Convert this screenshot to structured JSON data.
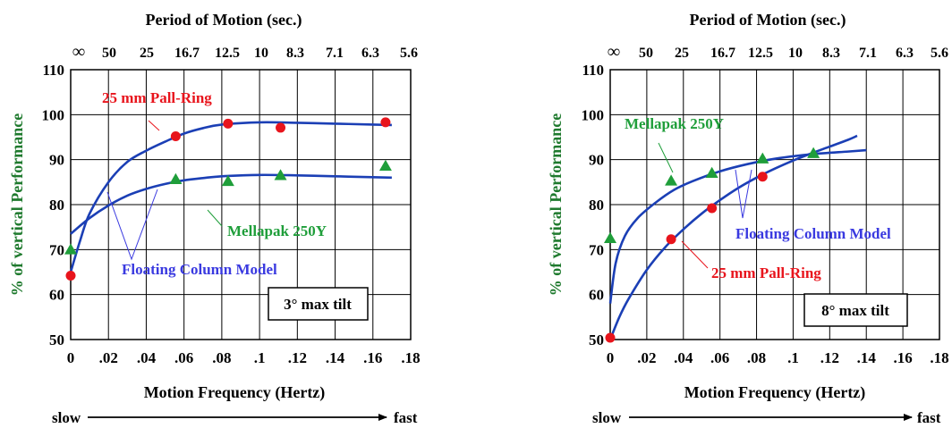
{
  "chart_data": [
    {
      "type": "scatter",
      "top_title": "Period of Motion (sec.)",
      "top_ticks": [
        "∞",
        "50",
        "25",
        "16.7",
        "12.5",
        "10",
        "8.3",
        "7.1",
        "6.3",
        "5.6"
      ],
      "xlabel": "Motion Frequency (Hertz)",
      "ylabel": "% of vertical Performance",
      "x_ticks": [
        "0",
        ".02",
        ".04",
        ".06",
        ".08",
        ".1",
        ".12",
        ".14",
        ".16",
        ".18"
      ],
      "y_ticks": [
        "50",
        "60",
        "70",
        "80",
        "90",
        "100",
        "110"
      ],
      "xlim": [
        0,
        0.18
      ],
      "ylim": [
        50,
        110
      ],
      "grid": true,
      "box_label": "3° max tilt",
      "arrow_left": "slow",
      "arrow_right": "fast",
      "model_label": "Floating Column Model",
      "series": [
        {
          "name": "25 mm Pall-Ring",
          "marker": "circle",
          "color": "#e8141c",
          "points": [
            [
              0,
              64.2
            ],
            [
              0.0556,
              95.2
            ],
            [
              0.0833,
              98.0
            ],
            [
              0.1111,
              97.1
            ],
            [
              0.1667,
              98.3
            ]
          ],
          "curve": [
            [
              0,
              65
            ],
            [
              0.005,
              72
            ],
            [
              0.01,
              78
            ],
            [
              0.02,
              85
            ],
            [
              0.03,
              89.5
            ],
            [
              0.04,
              92
            ],
            [
              0.05,
              94
            ],
            [
              0.06,
              95.8
            ],
            [
              0.07,
              97
            ],
            [
              0.08,
              97.8
            ],
            [
              0.1,
              98.3
            ],
            [
              0.12,
              98.2
            ],
            [
              0.14,
              98.0
            ],
            [
              0.16,
              97.8
            ],
            [
              0.17,
              97.7
            ]
          ]
        },
        {
          "name": "Mellapak 250Y",
          "marker": "triangle",
          "color": "#1f9e3a",
          "points": [
            [
              0,
              70.0
            ],
            [
              0.0556,
              85.6
            ],
            [
              0.0833,
              85.2
            ],
            [
              0.1111,
              86.5
            ],
            [
              0.1667,
              88.6
            ]
          ],
          "curve": [
            [
              0,
              73.5
            ],
            [
              0.01,
              77
            ],
            [
              0.02,
              79.8
            ],
            [
              0.03,
              82
            ],
            [
              0.04,
              83.5
            ],
            [
              0.05,
              84.6
            ],
            [
              0.06,
              85.4
            ],
            [
              0.07,
              85.9
            ],
            [
              0.08,
              86.3
            ],
            [
              0.1,
              86.6
            ],
            [
              0.12,
              86.5
            ],
            [
              0.14,
              86.3
            ],
            [
              0.16,
              86.1
            ],
            [
              0.17,
              86.0
            ]
          ]
        }
      ]
    },
    {
      "type": "scatter",
      "top_title": "Period of Motion (sec.)",
      "top_ticks": [
        "∞",
        "50",
        "25",
        "16.7",
        "12.5",
        "10",
        "8.3",
        "7.1",
        "6.3",
        "5.6"
      ],
      "xlabel": "Motion Frequency (Hertz)",
      "ylabel": "% of vertical Performance",
      "x_ticks": [
        "0",
        ".02",
        ".04",
        ".06",
        ".08",
        ".1",
        ".12",
        ".14",
        ".16",
        ".18"
      ],
      "y_ticks": [
        "50",
        "60",
        "70",
        "80",
        "90",
        "100",
        "110"
      ],
      "xlim": [
        0,
        0.18
      ],
      "ylim": [
        50,
        110
      ],
      "grid": true,
      "box_label": "8° max tilt",
      "arrow_left": "slow",
      "arrow_right": "fast",
      "model_label": "Floating Column Model",
      "series": [
        {
          "name": "Mellapak 250Y",
          "marker": "triangle",
          "color": "#1f9e3a",
          "points": [
            [
              0,
              72.5
            ],
            [
              0.0333,
              85.3
            ],
            [
              0.0556,
              87.0
            ],
            [
              0.0833,
              90.2
            ],
            [
              0.1111,
              91.4
            ]
          ],
          "curve": [
            [
              0,
              58
            ],
            [
              0.003,
              67
            ],
            [
              0.008,
              73
            ],
            [
              0.015,
              77
            ],
            [
              0.025,
              80.5
            ],
            [
              0.035,
              83.3
            ],
            [
              0.045,
              85.2
            ],
            [
              0.06,
              87.4
            ],
            [
              0.075,
              89
            ],
            [
              0.09,
              90.2
            ],
            [
              0.11,
              91.2
            ],
            [
              0.13,
              91.8
            ],
            [
              0.14,
              92.1
            ]
          ]
        },
        {
          "name": "25 mm Pall-Ring",
          "marker": "circle",
          "color": "#e8141c",
          "points": [
            [
              0,
              50.4
            ],
            [
              0.0333,
              72.3
            ],
            [
              0.0556,
              79.2
            ],
            [
              0.0833,
              86.2
            ]
          ],
          "curve": [
            [
              0,
              50
            ],
            [
              0.005,
              55
            ],
            [
              0.01,
              59
            ],
            [
              0.02,
              65.5
            ],
            [
              0.03,
              70.5
            ],
            [
              0.04,
              74.5
            ],
            [
              0.05,
              78
            ],
            [
              0.06,
              81
            ],
            [
              0.07,
              83.7
            ],
            [
              0.08,
              86
            ],
            [
              0.09,
              88
            ],
            [
              0.1,
              89.8
            ],
            [
              0.11,
              91.4
            ],
            [
              0.12,
              92.9
            ],
            [
              0.13,
              94.4
            ],
            [
              0.135,
              95.3
            ]
          ]
        }
      ]
    }
  ]
}
